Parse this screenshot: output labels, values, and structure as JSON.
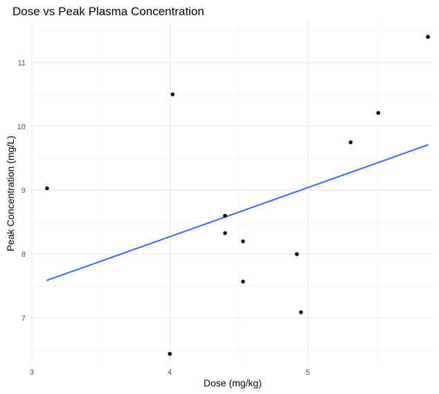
{
  "chart_data": {
    "type": "scatter",
    "title": "Dose vs Peak Plasma Concentration",
    "xlabel": "Dose (mg/kg)",
    "ylabel": "Peak Concentration (mg/L)",
    "xlim": [
      2.98,
      5.91
    ],
    "ylim": [
      6.32,
      11.62
    ],
    "x_ticks": [
      3,
      4,
      5
    ],
    "x_minor_ticks": [
      3.5,
      4.5,
      5.5
    ],
    "y_ticks": [
      7,
      8,
      9,
      10,
      11
    ],
    "y_minor_ticks": [
      6.5,
      7.5,
      8.5,
      9.5,
      10.5,
      11.5
    ],
    "grid": true,
    "legend": "none",
    "points": [
      {
        "x": 3.11,
        "y": 9.03
      },
      {
        "x": 4.0,
        "y": 6.44
      },
      {
        "x": 4.02,
        "y": 10.5
      },
      {
        "x": 4.4,
        "y": 8.6
      },
      {
        "x": 4.4,
        "y": 8.33
      },
      {
        "x": 4.53,
        "y": 8.2
      },
      {
        "x": 4.53,
        "y": 7.57
      },
      {
        "x": 4.92,
        "y": 8.0
      },
      {
        "x": 4.95,
        "y": 7.09
      },
      {
        "x": 5.31,
        "y": 9.75
      },
      {
        "x": 5.51,
        "y": 10.21
      },
      {
        "x": 5.87,
        "y": 11.4
      }
    ],
    "trend_line": {
      "x": [
        3.11,
        5.87
      ],
      "y": [
        7.59,
        9.71
      ],
      "color": "#3366ff"
    },
    "point_color": "#000000"
  }
}
